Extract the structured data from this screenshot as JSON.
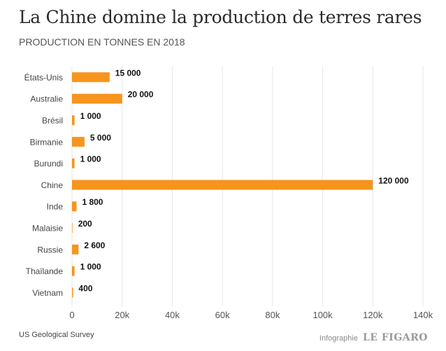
{
  "chart_data": {
    "type": "bar",
    "orientation": "horizontal",
    "title": "La Chine domine la production de terres rares",
    "subtitle": "PRODUCTION EN TONNES EN 2018",
    "categories": [
      "États-Unis",
      "Australie",
      "Brésil",
      "Birmanie",
      "Burundi",
      "Chine",
      "Inde",
      "Malaisie",
      "Russie",
      "Thaïlande",
      "Vietnam"
    ],
    "values": [
      15000,
      20000,
      1000,
      5000,
      1000,
      120000,
      1800,
      200,
      2600,
      1000,
      400
    ],
    "data_labels": [
      "15 000",
      "20 000",
      "1 000",
      "5 000",
      "1 000",
      "120 000",
      "1 800",
      "200",
      "2 600",
      "1 000",
      "400"
    ],
    "xlim": [
      0,
      140000
    ],
    "x_ticks": [
      0,
      20000,
      40000,
      60000,
      80000,
      100000,
      120000,
      140000
    ],
    "x_tick_labels": [
      "0",
      "20k",
      "40k",
      "60k",
      "80k",
      "100k",
      "120k",
      "140k"
    ],
    "grid": "vertical",
    "bar_color": "#F7941D",
    "grid_color": "#e6e6e6"
  },
  "footer": {
    "source": "US Geological Survey",
    "credit_label": "Infographie",
    "credit_brand": "LE FIGARO"
  }
}
